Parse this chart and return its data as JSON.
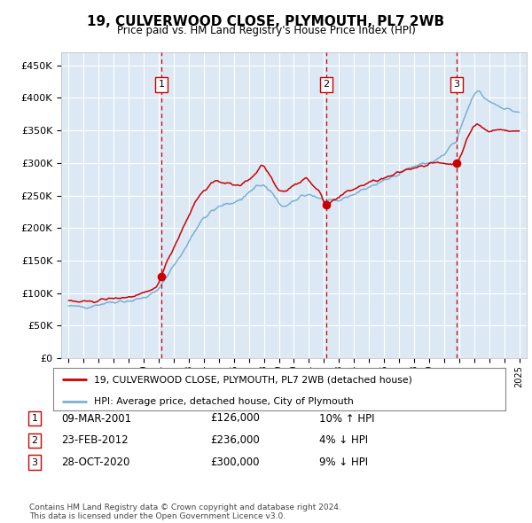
{
  "title": "19, CULVERWOOD CLOSE, PLYMOUTH, PL7 2WB",
  "subtitle": "Price paid vs. HM Land Registry's House Price Index (HPI)",
  "x_start_year": 1995,
  "x_end_year": 2025,
  "ylim": [
    0,
    470000
  ],
  "yticks": [
    0,
    50000,
    100000,
    150000,
    200000,
    250000,
    300000,
    350000,
    400000,
    450000
  ],
  "ytick_labels": [
    "£0",
    "£50K",
    "£100K",
    "£150K",
    "£200K",
    "£250K",
    "£300K",
    "£350K",
    "£400K",
    "£450K"
  ],
  "bg_color": "#dce9f5",
  "grid_color": "#ffffff",
  "sale_color": "#cc0000",
  "hpi_color": "#7ab0d4",
  "vline_color": "#cc0000",
  "transactions": [
    {
      "label": "1",
      "year": 2001.19,
      "price": 126000
    },
    {
      "label": "2",
      "year": 2012.14,
      "price": 236000
    },
    {
      "label": "3",
      "year": 2020.83,
      "price": 300000
    }
  ],
  "legend_entries": [
    "19, CULVERWOOD CLOSE, PLYMOUTH, PL7 2WB (detached house)",
    "HPI: Average price, detached house, City of Plymouth"
  ],
  "table_rows": [
    {
      "num": "1",
      "date": "09-MAR-2001",
      "price": "£126,000",
      "hpi": "10% ↑ HPI"
    },
    {
      "num": "2",
      "date": "23-FEB-2012",
      "price": "£236,000",
      "hpi": "4% ↓ HPI"
    },
    {
      "num": "3",
      "date": "28-OCT-2020",
      "price": "£300,000",
      "hpi": "9% ↓ HPI"
    }
  ],
  "footer": "Contains HM Land Registry data © Crown copyright and database right 2024.\nThis data is licensed under the Open Government Licence v3.0."
}
